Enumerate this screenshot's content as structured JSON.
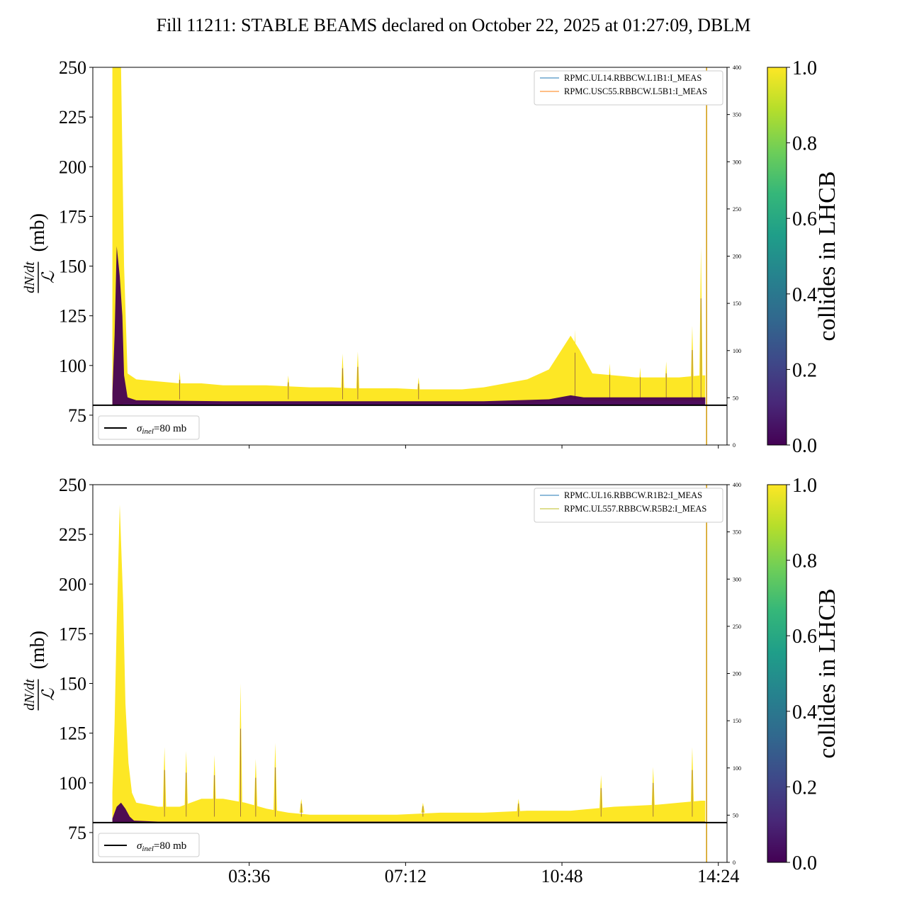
{
  "title": "Fill 11211: STABLE BEAMS declared on October 22, 2025 at 01:27:09, DBLM",
  "colors": {
    "yellow": "#fde725",
    "dark": "#440154",
    "line_blue": "#1f77b4",
    "line_orange": "#ff7f0e",
    "line_gold": "#bcbd22",
    "vline": "#d4a017"
  },
  "chart_data": [
    {
      "type": "area",
      "ylabel_num": "dN/dt",
      "ylabel_den": "ℒ",
      "ylabel_unit": "(mb)",
      "ylim": [
        60,
        250
      ],
      "yticks": [
        "75",
        "100",
        "125",
        "150",
        "175",
        "200",
        "225",
        "250"
      ],
      "y2lim": [
        0,
        400
      ],
      "y2ticks": [
        "0",
        "50",
        "100",
        "150",
        "200",
        "250",
        "300",
        "350",
        "400"
      ],
      "xticks": [],
      "reference_line": {
        "value": 80,
        "label": "σinel=80 mb",
        "sym": "σ",
        "sub": "inel",
        "rest": "=80 mb"
      },
      "legend": [
        "RPMC.UL14.RBBCW.L1B1:I_MEAS",
        "RPMC.USC55.RBBCW.L5B1:I_MEAS"
      ],
      "legend_position": "top-right",
      "colorbar": {
        "label": "collides in LHCB",
        "ticks": [
          "0.0",
          "0.2",
          "0.4",
          "0.6",
          "0.8",
          "1.0"
        ]
      },
      "series": [
        {
          "name": "collides=1",
          "x": [
            0.45,
            0.5,
            0.58,
            0.65,
            0.72,
            0.8,
            1.0,
            1.5,
            2.0,
            2.5,
            3.0,
            3.5,
            4.0,
            4.5,
            5.0,
            5.5,
            6.0,
            6.5,
            7.0,
            7.5,
            8.0,
            8.5,
            9.0,
            9.5,
            10.0,
            10.5,
            11.0,
            11.2,
            11.5,
            12.0,
            12.5,
            13.0,
            13.5,
            14.0,
            14.1
          ],
          "upper": [
            250,
            250,
            250,
            250,
            150,
            96,
            93,
            92,
            91,
            91,
            90,
            90,
            90,
            89.5,
            89,
            89,
            88.5,
            88.5,
            88.5,
            88,
            88,
            88,
            89,
            91,
            93,
            98,
            115,
            108,
            96,
            95,
            94,
            94,
            94,
            95,
            95
          ],
          "lower": [
            80,
            80,
            80,
            80,
            81,
            81,
            81,
            81,
            81,
            81,
            81,
            81,
            81,
            81,
            81,
            81,
            81,
            81,
            81,
            81,
            81,
            81,
            81,
            81,
            81,
            82,
            83,
            83,
            82,
            82,
            82,
            82,
            82,
            82,
            82
          ]
        },
        {
          "name": "collides=0",
          "x": [
            0.45,
            0.5,
            0.55,
            0.62,
            0.68,
            0.72,
            0.8,
            1.0,
            3.0,
            6.0,
            9.0,
            10.5,
            11.0,
            11.3,
            12.0,
            13.5,
            14.1
          ],
          "upper": [
            86,
            115,
            160,
            145,
            125,
            95,
            84,
            82.5,
            82,
            82,
            82,
            83,
            85,
            84,
            84,
            84,
            84
          ],
          "lower": [
            80,
            80,
            80,
            80,
            80,
            80,
            80,
            80,
            80,
            80,
            80,
            80,
            80,
            80,
            80,
            80,
            80
          ]
        }
      ],
      "spikes": [
        {
          "x": 2.0,
          "y": 97
        },
        {
          "x": 4.5,
          "y": 95
        },
        {
          "x": 5.75,
          "y": 106
        },
        {
          "x": 6.1,
          "y": 107
        },
        {
          "x": 7.5,
          "y": 94
        },
        {
          "x": 11.1,
          "y": 118
        },
        {
          "x": 11.9,
          "y": 101
        },
        {
          "x": 12.6,
          "y": 99
        },
        {
          "x": 13.2,
          "y": 102
        },
        {
          "x": 13.8,
          "y": 120
        },
        {
          "x": 14.0,
          "y": 160
        }
      ],
      "vline_x": 14.13
    },
    {
      "type": "area",
      "ylabel_num": "dN/dt",
      "ylabel_den": "ℒ",
      "ylabel_unit": "(mb)",
      "ylim": [
        60,
        250
      ],
      "yticks": [
        "75",
        "100",
        "125",
        "150",
        "175",
        "200",
        "225",
        "250"
      ],
      "y2lim": [
        0,
        400
      ],
      "y2ticks": [
        "0",
        "50",
        "100",
        "150",
        "200",
        "250",
        "300",
        "350",
        "400"
      ],
      "xticks": [
        "03:36",
        "07:12",
        "10:48",
        "14:24"
      ],
      "reference_line": {
        "value": 80,
        "label": "σinel=80 mb",
        "sym": "σ",
        "sub": "inel",
        "rest": "=80 mb"
      },
      "legend": [
        "RPMC.UL16.RBBCW.R1B2:I_MEAS",
        "RPMC.UL557.RBBCW.R5B2:I_MEAS"
      ],
      "legend_position": "top-right",
      "colorbar": {
        "label": "collides in LHCB",
        "ticks": [
          "0.0",
          "0.2",
          "0.4",
          "0.6",
          "0.8",
          "1.0"
        ]
      },
      "series": [
        {
          "name": "collides=1",
          "x": [
            0.45,
            0.5,
            0.55,
            0.62,
            0.7,
            0.75,
            0.82,
            0.9,
            1.0,
            1.5,
            2.0,
            2.5,
            3.0,
            3.5,
            4.0,
            4.5,
            5.0,
            6.0,
            7.0,
            8.0,
            9.0,
            10.0,
            11.0,
            12.0,
            13.0,
            13.5,
            14.0,
            14.1
          ],
          "upper": [
            95,
            130,
            180,
            240,
            190,
            140,
            110,
            95,
            90,
            88,
            88,
            92,
            92,
            90,
            87,
            85,
            84,
            84,
            84,
            85,
            85,
            86,
            86,
            88,
            89,
            90,
            91,
            91
          ],
          "lower": [
            80,
            80,
            80,
            80,
            80,
            80,
            80,
            80,
            80,
            80,
            80,
            80,
            80,
            80,
            80,
            80,
            80,
            80,
            80,
            80,
            80,
            80,
            80,
            80,
            80,
            80,
            80,
            80
          ]
        },
        {
          "name": "collides=0",
          "x": [
            0.45,
            0.55,
            0.65,
            0.75,
            0.85,
            0.95,
            1.5,
            3.0,
            14.1
          ],
          "upper": [
            82,
            88,
            90,
            87,
            83,
            81,
            80.5,
            80.5,
            80.5
          ],
          "lower": [
            80,
            80,
            80,
            80,
            80,
            80,
            80,
            80,
            80
          ]
        }
      ],
      "spikes": [
        {
          "x": 1.65,
          "y": 118
        },
        {
          "x": 2.15,
          "y": 116
        },
        {
          "x": 2.8,
          "y": 114
        },
        {
          "x": 3.4,
          "y": 150
        },
        {
          "x": 3.75,
          "y": 112
        },
        {
          "x": 4.2,
          "y": 120
        },
        {
          "x": 4.8,
          "y": 92
        },
        {
          "x": 7.6,
          "y": 90
        },
        {
          "x": 9.8,
          "y": 92
        },
        {
          "x": 11.7,
          "y": 104
        },
        {
          "x": 12.9,
          "y": 108
        },
        {
          "x": 13.8,
          "y": 118
        }
      ],
      "vline_x": 14.13
    }
  ]
}
